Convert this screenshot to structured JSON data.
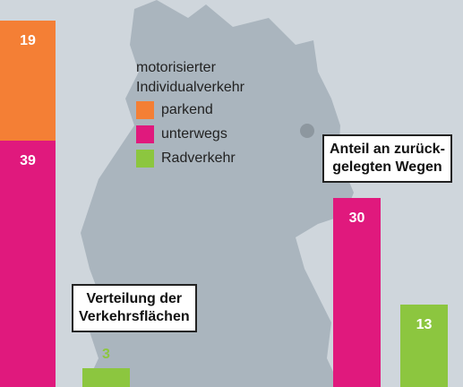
{
  "chart_data": {
    "type": "bar",
    "categories": [
      "Verteilung der\nVerkehrsflächen",
      "Anteil an zurück-\ngelegten Wegen"
    ],
    "legend_title": "motorisierter Individualverkehr",
    "series": [
      {
        "name": "parkend",
        "color": "#f47f35",
        "values": [
          19,
          null
        ]
      },
      {
        "name": "unterwegs",
        "color": "#e0197d",
        "values": [
          39,
          30
        ]
      },
      {
        "name": "Radverkehr",
        "color": "#8cc63f",
        "values": [
          3,
          13
        ]
      }
    ]
  }
}
